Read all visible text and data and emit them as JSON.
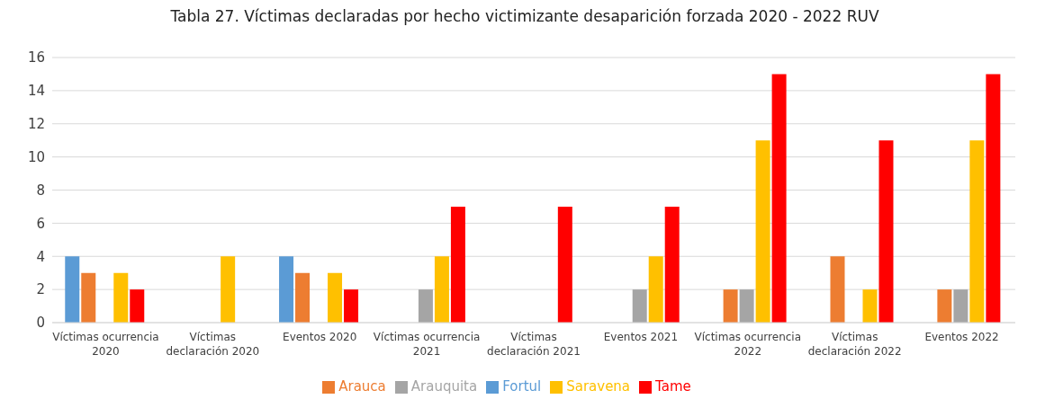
{
  "chart_data": {
    "type": "bar",
    "title": "Tabla 27. Víctimas declaradas por hecho victimizante desaparición forzada 2020 - 2022 RUV",
    "categories": [
      "Víctimas ocurrencia 2020",
      "Víctimas declaración 2020",
      "Eventos 2020",
      "Víctimas ocurrencia 2021",
      "Víctimas declaración 2021",
      "Eventos 2021",
      "Víctimas ocurrencia 2022",
      "Víctimas declaración 2022",
      "Eventos 2022"
    ],
    "series": [
      {
        "name": "Fortul",
        "color": "#5b9bd5",
        "values": [
          4,
          0,
          4,
          0,
          0,
          0,
          0,
          0,
          0
        ]
      },
      {
        "name": "Arauca",
        "color": "#ed7d31",
        "values": [
          3,
          0,
          3,
          0,
          0,
          0,
          2,
          4,
          2
        ]
      },
      {
        "name": "Arauquita",
        "color": "#a5a5a5",
        "values": [
          0,
          0,
          0,
          2,
          0,
          2,
          2,
          0,
          2
        ]
      },
      {
        "name": "Saravena",
        "color": "#ffc000",
        "values": [
          3,
          4,
          3,
          4,
          0,
          4,
          11,
          2,
          11
        ]
      },
      {
        "name": "Tame",
        "color": "#ff0000",
        "values": [
          2,
          0,
          2,
          7,
          7,
          7,
          15,
          11,
          15
        ]
      }
    ],
    "ylim": [
      0,
      16
    ],
    "yticks": [
      0,
      2,
      4,
      6,
      8,
      10,
      12,
      14,
      16
    ],
    "grid": "y",
    "legend": "bottom"
  }
}
